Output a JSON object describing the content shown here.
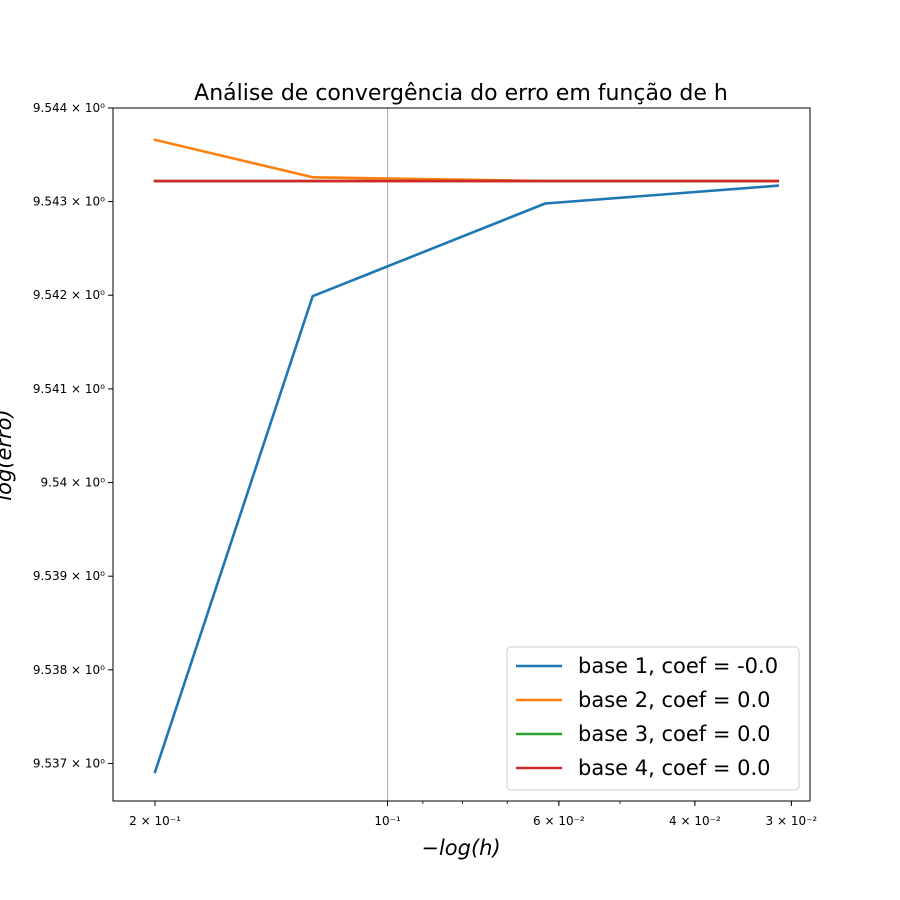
{
  "chart_data": {
    "type": "line",
    "title": "Análise de convergência do erro em função de h",
    "xlabel": "−log(h)",
    "ylabel": "log(erro)",
    "x_scale": "log",
    "y_scale": "log",
    "x_inverted": true,
    "xlim": [
      0.2267,
      0.02838
    ],
    "ylim": [
      9.5366,
      9.544
    ],
    "x_ticks": [
      {
        "value": 0.2,
        "label": "2 × 10⁻¹"
      },
      {
        "value": 0.1,
        "label": "10⁻¹"
      },
      {
        "value": 0.06,
        "label": "6 × 10⁻²"
      },
      {
        "value": 0.04,
        "label": "4 × 10⁻²"
      },
      {
        "value": 0.03,
        "label": "3 × 10⁻²"
      }
    ],
    "y_ticks": [
      {
        "value": 9.537,
        "label": "9.537 × 10⁰"
      },
      {
        "value": 9.538,
        "label": "9.538 × 10⁰"
      },
      {
        "value": 9.539,
        "label": "9.539 × 10⁰"
      },
      {
        "value": 9.54,
        "label": "9.54 × 10⁰"
      },
      {
        "value": 9.541,
        "label": "9.541 × 10⁰"
      },
      {
        "value": 9.542,
        "label": "9.542 × 10⁰"
      },
      {
        "value": 9.543,
        "label": "9.543 × 10⁰"
      },
      {
        "value": 9.544,
        "label": "9.544 × 10⁰"
      }
    ],
    "vline_x": 0.1,
    "x": [
      0.2,
      0.125,
      0.0625,
      0.03125
    ],
    "series": [
      {
        "name": "base 1, coef = -0.0",
        "color": "#1f77b4",
        "values": [
          9.53691,
          9.54199,
          9.54298,
          9.54317
        ]
      },
      {
        "name": "base 2, coef = 0.0",
        "color": "#ff7f0e",
        "values": [
          9.54366,
          9.54326,
          9.54322,
          9.54322
        ]
      },
      {
        "name": "base 3, coef = 0.0",
        "color": "#2ca02c",
        "values": [
          9.54322,
          9.54322,
          9.54322,
          9.54322
        ]
      },
      {
        "name": "base 4, coef = 0.0",
        "color": "#d62728",
        "values": [
          9.54322,
          9.54322,
          9.54322,
          9.54322
        ]
      }
    ],
    "legend_position": "lower-right",
    "grid": false
  }
}
